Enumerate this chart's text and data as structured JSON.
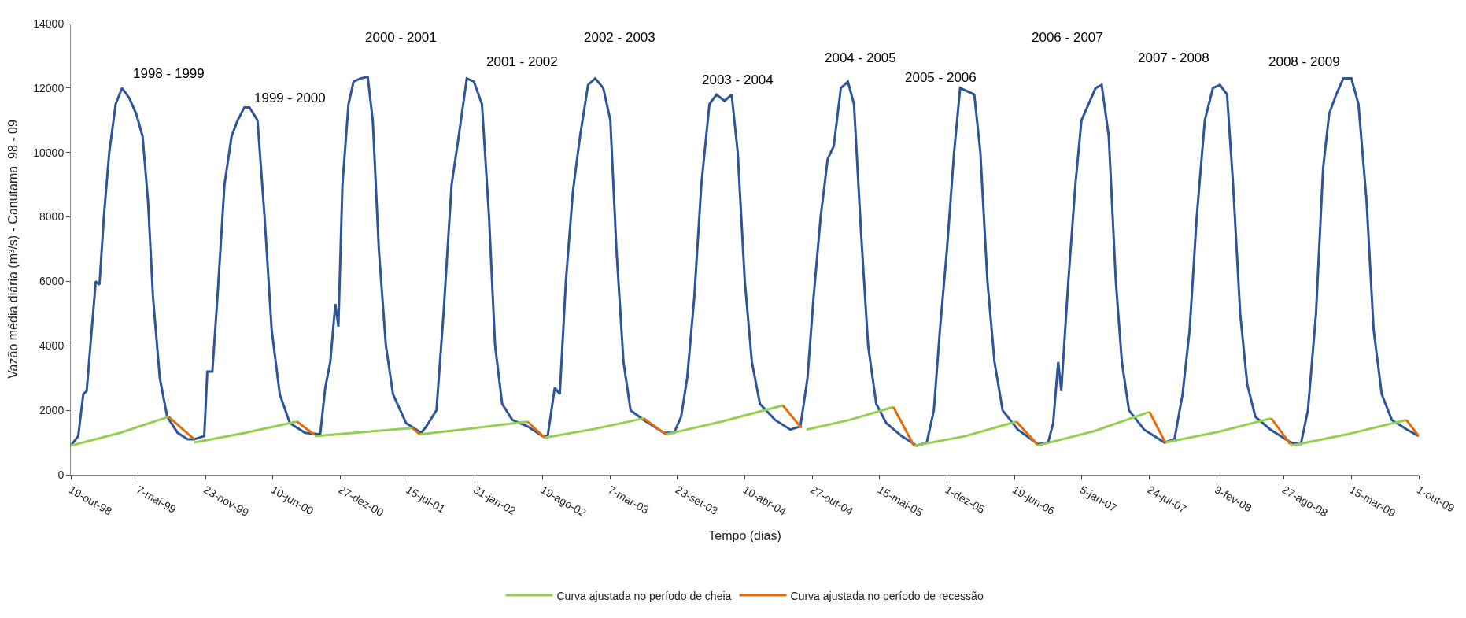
{
  "chart_data": {
    "type": "line",
    "xlabel": "Tempo (dias)",
    "ylabel": "Vazão média diária (m³/s) - Canutama  98 - 09",
    "xlim": [
      "1998-10-19",
      "2009-10-01"
    ],
    "xticks": [
      {
        "value": "1998-10-19",
        "label": "19-out-98"
      },
      {
        "value": "1999-05-07",
        "label": "7-mai-99"
      },
      {
        "value": "1999-11-23",
        "label": "23-nov-99"
      },
      {
        "value": "2000-06-10",
        "label": "10-jun-00"
      },
      {
        "value": "2000-12-27",
        "label": "27-dez-00"
      },
      {
        "value": "2001-07-15",
        "label": "15-jul-01"
      },
      {
        "value": "2002-01-31",
        "label": "31-jan-02"
      },
      {
        "value": "2002-08-19",
        "label": "19-ago-02"
      },
      {
        "value": "2003-03-07",
        "label": "7-mar-03"
      },
      {
        "value": "2003-09-23",
        "label": "23-set-03"
      },
      {
        "value": "2004-04-10",
        "label": "10-abr-04"
      },
      {
        "value": "2004-10-27",
        "label": "27-out-04"
      },
      {
        "value": "2005-05-15",
        "label": "15-mai-05"
      },
      {
        "value": "2005-12-01",
        "label": "1-dez-05"
      },
      {
        "value": "2006-06-19",
        "label": "19-jun-06"
      },
      {
        "value": "2007-01-05",
        "label": "5-jan-07"
      },
      {
        "value": "2007-07-24",
        "label": "24-jul-07"
      },
      {
        "value": "2008-02-09",
        "label": "9-fev-08"
      },
      {
        "value": "2008-08-27",
        "label": "27-ago-08"
      },
      {
        "value": "2009-03-15",
        "label": "15-mar-09"
      },
      {
        "value": "2009-10-01",
        "label": "1-out-09"
      }
    ],
    "ylim": [
      0,
      14000
    ],
    "yticks": [
      0,
      2000,
      4000,
      6000,
      8000,
      10000,
      12000,
      14000
    ],
    "legend": "bottom",
    "series": [
      {
        "color": "#2e5597",
        "x": [
          "1998-10-19",
          "1998-11-10",
          "1998-11-25",
          "1998-12-05",
          "1998-12-20",
          "1999-01-01",
          "1999-01-12",
          "1999-01-25",
          "1999-02-10",
          "1999-03-01",
          "1999-03-20",
          "1999-04-10",
          "1999-05-01",
          "1999-05-20",
          "1999-06-05",
          "1999-06-20",
          "1999-07-10",
          "1999-08-01",
          "1999-09-01",
          "1999-10-01",
          "1999-10-20",
          "1999-11-19",
          "1999-11-28",
          "1999-12-13",
          "1999-12-28",
          "2000-01-18",
          "2000-02-08",
          "2000-02-26",
          "2000-03-17",
          "2000-04-01",
          "2000-04-25",
          "2000-05-16",
          "2000-06-06",
          "2000-06-30",
          "2000-07-30",
          "2000-09-13",
          "2000-10-28",
          "2000-11-12",
          "2000-11-27",
          "2000-12-12",
          "2000-12-21",
          "2001-01-02",
          "2001-01-20",
          "2001-02-04",
          "2001-02-25",
          "2001-03-18",
          "2001-04-02",
          "2001-04-20",
          "2001-05-11",
          "2001-06-01",
          "2001-07-10",
          "2001-08-24",
          "2001-09-08",
          "2001-10-08",
          "2001-10-29",
          "2001-11-22",
          "2001-12-13",
          "2002-01-06",
          "2002-01-27",
          "2002-02-20",
          "2002-03-13",
          "2002-03-31",
          "2002-04-21",
          "2002-05-21",
          "2002-07-05",
          "2002-08-19",
          "2002-09-03",
          "2002-09-24",
          "2002-10-09",
          "2002-10-27",
          "2002-11-17",
          "2002-12-08",
          "2003-01-01",
          "2003-01-22",
          "2003-02-15",
          "2003-03-08",
          "2003-03-26",
          "2003-04-16",
          "2003-05-07",
          "2003-06-15",
          "2003-08-14",
          "2003-09-13",
          "2003-10-04",
          "2003-10-22",
          "2003-11-12",
          "2003-12-03",
          "2003-12-27",
          "2004-01-17",
          "2004-02-10",
          "2004-03-02",
          "2004-03-20",
          "2004-04-10",
          "2004-05-01",
          "2004-05-25",
          "2004-07-09",
          "2004-08-23",
          "2004-09-22",
          "2004-10-13",
          "2004-10-31",
          "2004-11-21",
          "2004-12-12",
          "2004-12-30",
          "2005-01-20",
          "2005-02-10",
          "2005-02-28",
          "2005-03-21",
          "2005-04-11",
          "2005-05-05",
          "2005-06-04",
          "2005-07-19",
          "2005-09-02",
          "2005-10-02",
          "2005-10-23",
          "2005-11-10",
          "2005-12-01",
          "2005-12-22",
          "2006-01-09",
          "2006-01-30",
          "2006-02-20",
          "2006-03-10",
          "2006-03-31",
          "2006-04-21",
          "2006-05-15",
          "2006-06-29",
          "2006-08-28",
          "2006-09-27",
          "2006-10-12",
          "2006-10-27",
          "2006-11-05",
          "2006-11-26",
          "2006-12-17",
          "2007-01-04",
          "2007-01-25",
          "2007-02-15",
          "2007-03-05",
          "2007-03-26",
          "2007-04-16",
          "2007-05-04",
          "2007-05-25",
          "2007-07-09",
          "2007-09-07",
          "2007-10-07",
          "2007-10-31",
          "2007-11-21",
          "2007-12-12",
          "2008-01-05",
          "2008-01-29",
          "2008-02-19",
          "2008-03-11",
          "2008-03-29",
          "2008-04-19",
          "2008-05-10",
          "2008-06-03",
          "2008-07-18",
          "2008-09-16",
          "2008-10-16",
          "2008-11-06",
          "2008-11-30",
          "2008-12-21",
          "2009-01-08",
          "2009-01-29",
          "2009-02-19",
          "2009-03-15",
          "2009-04-05",
          "2009-04-29",
          "2009-05-20",
          "2009-06-13",
          "2009-07-13",
          "2009-08-27",
          "2009-10-01"
        ],
        "values": [
          900,
          1200,
          2500,
          2600,
          4500,
          6000,
          5900,
          8000,
          10000,
          11500,
          12000,
          11700,
          11200,
          10500,
          8500,
          5500,
          3000,
          1800,
          1300,
          1100,
          1100,
          1200,
          3200,
          3200,
          5500,
          9000,
          10500,
          11000,
          11400,
          11400,
          11000,
          8000,
          4500,
          2500,
          1600,
          1300,
          1250,
          2700,
          3500,
          5300,
          4600,
          9000,
          11500,
          12200,
          12300,
          12350,
          11000,
          7000,
          4000,
          2500,
          1600,
          1300,
          1500,
          2000,
          5000,
          9000,
          10500,
          12300,
          12200,
          11500,
          8000,
          4000,
          2200,
          1700,
          1500,
          1200,
          1200,
          2700,
          2500,
          6000,
          8800,
          10500,
          12100,
          12300,
          12000,
          11000,
          7000,
          3500,
          2000,
          1700,
          1300,
          1300,
          1800,
          3000,
          5500,
          9000,
          11500,
          11800,
          11600,
          11800,
          10000,
          6000,
          3500,
          2200,
          1700,
          1400,
          1500,
          3000,
          5500,
          8000,
          9800,
          10200,
          12000,
          12200,
          11500,
          7500,
          4000,
          2200,
          1600,
          1200,
          900,
          1000,
          2000,
          4500,
          7000,
          10000,
          12000,
          11900,
          11800,
          10000,
          6000,
          3500,
          2000,
          1400,
          950,
          1000,
          1600,
          3500,
          2600,
          6000,
          9000,
          11000,
          11500,
          12000,
          12100,
          10500,
          6000,
          3500,
          2000,
          1400,
          1000,
          1100,
          2500,
          4500,
          8000,
          11000,
          12000,
          12100,
          11800,
          9000,
          5000,
          2800,
          1800,
          1400,
          1000,
          950,
          2000,
          5000,
          9500,
          11200,
          11800,
          12300,
          12300,
          11500,
          8500,
          4500,
          2500,
          1700,
          1400,
          1200
        ]
      },
      {
        "name": "Curva ajustada no período de cheia",
        "color": "#92d050",
        "x": [
          "1998-10-19",
          "1999-03-15",
          "1999-08-05",
          "1999-08-06",
          "1999-10-20",
          "2000-03-20",
          "2000-08-20",
          "2000-08-21",
          "2000-10-12",
          "2001-03-01",
          "2001-07-28",
          "2001-07-29",
          "2001-08-20",
          "2002-01-15",
          "2002-07-05",
          "2002-07-06",
          "2002-08-25",
          "2003-01-20",
          "2003-06-15",
          "2003-06-16",
          "2003-08-20",
          "2004-02-01",
          "2004-08-01",
          "2004-08-02",
          "2004-10-10",
          "2005-02-15",
          "2005-06-25",
          "2005-06-26",
          "2005-08-25",
          "2006-01-25",
          "2006-06-25",
          "2006-06-26",
          "2006-08-25",
          "2007-02-10",
          "2007-07-25",
          "2007-07-26",
          "2007-09-10",
          "2008-02-15",
          "2008-07-20",
          "2008-07-21",
          "2008-09-15",
          "2009-03-01",
          "2009-08-25"
        ],
        "values": [
          900,
          1300,
          1800,
          null,
          1000,
          1300,
          1650,
          null,
          1200,
          1320,
          1450,
          null,
          1250,
          1430,
          1650,
          null,
          1150,
          1420,
          1750,
          null,
          1250,
          1650,
          2150,
          null,
          1400,
          1700,
          2100,
          null,
          900,
          1200,
          1650,
          null,
          900,
          1350,
          1950,
          null,
          1000,
          1330,
          1750,
          null,
          900,
          1250,
          1700
        ]
      },
      {
        "name": "Curva ajustada no período de recessão",
        "color": "#e46c0a",
        "x": [
          "1999-08-05",
          "1999-10-20",
          "1999-10-21",
          "2000-08-20",
          "2000-10-10",
          "2000-10-11",
          "2001-07-28",
          "2001-08-20",
          "2001-08-21",
          "2002-07-05",
          "2002-08-25",
          "2002-08-26",
          "2003-06-15",
          "2003-08-20",
          "2003-08-21",
          "2004-08-01",
          "2004-09-25",
          "2004-09-26",
          "2005-06-25",
          "2005-08-25",
          "2005-08-26",
          "2006-06-25",
          "2006-08-25",
          "2006-08-26",
          "2007-07-25",
          "2007-09-10",
          "2007-09-11",
          "2008-07-20",
          "2008-09-15",
          "2008-09-16",
          "2009-08-25",
          "2009-10-01"
        ],
        "values": [
          1800,
          1100,
          null,
          1650,
          1250,
          null,
          1450,
          1250,
          null,
          1650,
          1150,
          null,
          1750,
          1250,
          null,
          2150,
          1450,
          null,
          2100,
          900,
          null,
          1650,
          950,
          null,
          1950,
          1000,
          null,
          1750,
          950,
          null,
          1700,
          1200
        ]
      }
    ],
    "annotations": [
      "1998 - 1999",
      "1999 - 2000",
      "2000 - 2001",
      "2001 - 2002",
      "2002 - 2003",
      "2003 - 2004",
      "2004 - 2005",
      "2005 - 2006",
      "2006 - 2007",
      "2007 - 2008",
      "2008 - 2009"
    ]
  }
}
